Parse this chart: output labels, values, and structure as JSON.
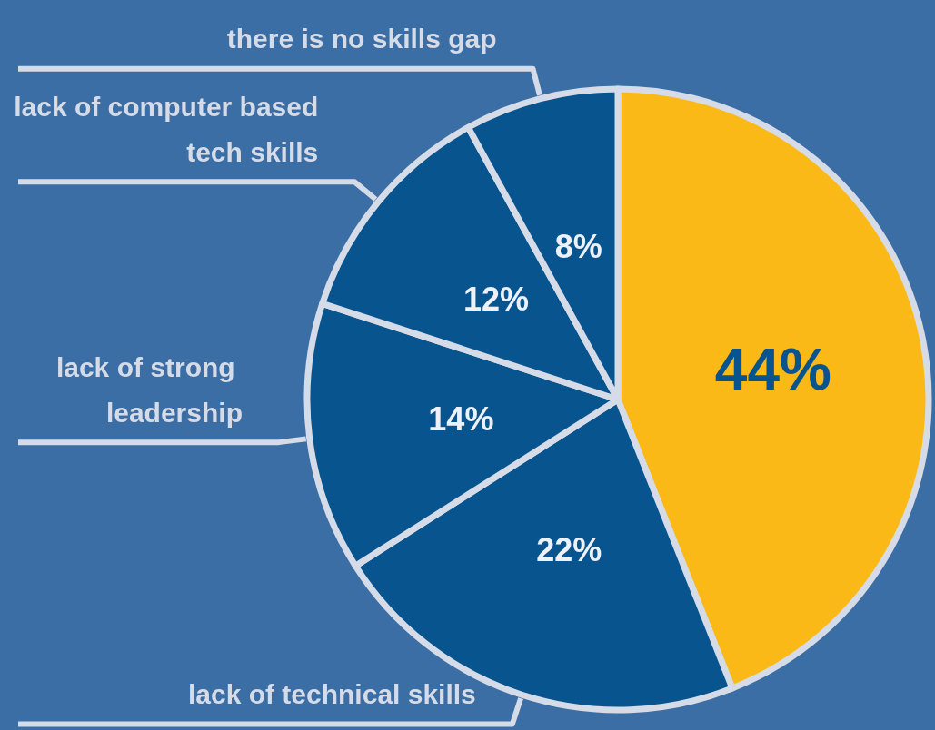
{
  "chart_data": {
    "type": "pie",
    "categories": [
      null,
      "lack of technical skills",
      "lack of strong leadership",
      "lack of computer based tech skills",
      "there is no skills gap"
    ],
    "values": [
      44,
      22,
      14,
      12,
      8
    ],
    "value_labels": [
      "44%",
      "22%",
      "14%",
      "12%",
      "8%"
    ],
    "colors": [
      "#fbb917",
      "#07548f",
      "#07548f",
      "#07548f",
      "#07548f"
    ],
    "legend": false
  }
}
